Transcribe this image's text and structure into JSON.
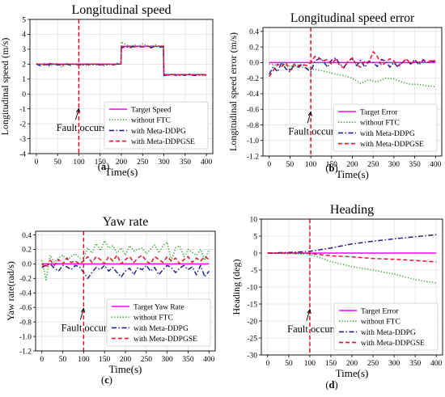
{
  "chart_data": [
    {
      "type": "line",
      "panel_label": "(a)",
      "title": "Longitudinal speed",
      "xlabel": "Time(s)",
      "ylabel": "Longitudinal speed (m/s)",
      "xlim": [
        -15,
        415
      ],
      "ylim": [
        -4,
        5
      ],
      "xticks": [
        0,
        50,
        100,
        150,
        200,
        250,
        300,
        350,
        400
      ],
      "yticks": [
        -4,
        -3,
        -2,
        -1,
        0,
        1,
        2,
        3,
        4,
        5
      ],
      "grid": true,
      "legend_position": "lower-right",
      "annotation": {
        "text": "Fault occurs",
        "time": 100
      },
      "series": [
        {
          "name": "Target Speed",
          "style": "solid",
          "color": "#ff00ff",
          "x": [
            0,
            199,
            200,
            299,
            300,
            400
          ],
          "y": [
            2.0,
            2.0,
            3.2,
            3.2,
            1.3,
            1.3
          ]
        },
        {
          "name": "without FTC",
          "style": "dotted",
          "color": "#2ca02c",
          "x": [
            0,
            10,
            20,
            30,
            40,
            50,
            60,
            70,
            80,
            90,
            100,
            110,
            120,
            130,
            140,
            150,
            160,
            170,
            180,
            190,
            199,
            200,
            210,
            220,
            230,
            240,
            250,
            260,
            270,
            280,
            290,
            299,
            300,
            310,
            320,
            330,
            340,
            350,
            360,
            370,
            380,
            390,
            400
          ],
          "y": [
            2.05,
            1.95,
            2.05,
            1.85,
            1.95,
            2.05,
            1.8,
            2.0,
            1.9,
            2.05,
            1.95,
            2.0,
            1.9,
            2.05,
            1.95,
            2.0,
            1.9,
            2.0,
            1.95,
            2.05,
            2.0,
            3.5,
            3.3,
            3.2,
            3.3,
            3.2,
            3.35,
            3.25,
            3.2,
            3.3,
            3.2,
            3.25,
            1.4,
            1.25,
            1.35,
            1.2,
            1.3,
            1.25,
            1.35,
            1.25,
            1.3,
            1.2,
            1.3
          ]
        },
        {
          "name": "with Meta-DDPG",
          "style": "dashdot",
          "color": "#1f1f8f",
          "x": [
            0,
            10,
            20,
            30,
            40,
            50,
            60,
            70,
            80,
            90,
            100,
            110,
            120,
            130,
            140,
            150,
            160,
            170,
            180,
            190,
            199,
            200,
            210,
            220,
            230,
            240,
            250,
            260,
            270,
            280,
            290,
            299,
            300,
            310,
            320,
            330,
            340,
            350,
            360,
            370,
            380,
            390,
            400
          ],
          "y": [
            2.0,
            1.9,
            2.0,
            1.95,
            2.0,
            1.95,
            1.95,
            2.0,
            1.95,
            2.0,
            1.95,
            1.95,
            2.0,
            1.95,
            2.0,
            1.95,
            1.95,
            2.0,
            1.95,
            2.0,
            2.0,
            3.1,
            3.15,
            3.1,
            3.2,
            3.15,
            3.15,
            3.2,
            3.1,
            3.2,
            3.15,
            3.15,
            1.25,
            1.25,
            1.3,
            1.25,
            1.3,
            1.25,
            1.3,
            1.25,
            1.25,
            1.3,
            1.25
          ]
        },
        {
          "name": "with Meta-DDPGSE",
          "style": "dashed",
          "color": "#e8102a",
          "x": [
            0,
            10,
            20,
            30,
            40,
            50,
            60,
            70,
            80,
            90,
            100,
            110,
            120,
            130,
            140,
            150,
            160,
            170,
            180,
            190,
            199,
            200,
            210,
            220,
            230,
            240,
            250,
            260,
            270,
            280,
            290,
            299,
            300,
            310,
            320,
            330,
            340,
            350,
            360,
            370,
            380,
            390,
            400
          ],
          "y": [
            2.0,
            2.0,
            1.95,
            2.05,
            2.0,
            2.0,
            1.95,
            2.0,
            2.0,
            2.0,
            1.95,
            2.0,
            1.95,
            2.0,
            2.0,
            1.95,
            2.0,
            2.0,
            1.95,
            2.0,
            2.0,
            3.2,
            3.15,
            3.2,
            3.15,
            3.2,
            3.15,
            3.2,
            3.15,
            3.2,
            3.2,
            3.2,
            1.3,
            1.25,
            1.3,
            1.3,
            1.25,
            1.3,
            1.3,
            1.25,
            1.3,
            1.3,
            1.25
          ]
        }
      ]
    },
    {
      "type": "line",
      "panel_label": "(b)",
      "title": "Longitudinal speed error",
      "xlabel": "Time(s)",
      "ylabel": "Longitudinal speed error (m/s)",
      "xlim": [
        -15,
        415
      ],
      "ylim": [
        -1.2,
        0.45
      ],
      "xticks": [
        0,
        50,
        100,
        150,
        200,
        250,
        300,
        350,
        400
      ],
      "yticks": [
        -1.2,
        -1.0,
        -0.8,
        -0.6,
        -0.4,
        -0.2,
        0.0,
        0.2,
        0.4
      ],
      "grid": true,
      "legend_position": "lower-right",
      "annotation": {
        "text": "Fault occurs",
        "time": 100
      },
      "series": [
        {
          "name": "Target Error",
          "style": "solid",
          "color": "#ff00ff",
          "x": [
            0,
            400
          ],
          "y": [
            0.0,
            0.0
          ]
        },
        {
          "name": "without FTC",
          "style": "dotted",
          "color": "#2ca02c",
          "x": [
            0,
            20,
            40,
            60,
            80,
            100,
            120,
            140,
            160,
            180,
            200,
            220,
            240,
            260,
            280,
            300,
            320,
            340,
            360,
            380,
            400
          ],
          "y": [
            -0.02,
            -0.03,
            -0.04,
            -0.05,
            -0.06,
            -0.08,
            -0.1,
            -0.12,
            -0.15,
            -0.17,
            -0.2,
            -0.27,
            -0.22,
            -0.25,
            -0.2,
            -0.21,
            -0.25,
            -0.28,
            -0.28,
            -0.3,
            -0.31
          ]
        },
        {
          "name": "with Meta-DDPG",
          "style": "dashdot",
          "color": "#1f1f8f",
          "x": [
            0,
            10,
            20,
            30,
            40,
            50,
            60,
            70,
            80,
            90,
            100,
            110,
            120,
            130,
            140,
            150,
            160,
            170,
            180,
            190,
            200,
            210,
            220,
            230,
            240,
            250,
            260,
            270,
            280,
            290,
            300,
            310,
            320,
            330,
            340,
            350,
            360,
            370,
            380,
            390,
            400
          ],
          "y": [
            -0.15,
            -0.05,
            -0.12,
            0.0,
            -0.08,
            -0.12,
            -0.03,
            -0.06,
            -0.02,
            -0.08,
            -0.12,
            0.02,
            0.05,
            0.02,
            -0.06,
            0.03,
            0.06,
            -0.02,
            -0.06,
            0.02,
            0.05,
            -0.04,
            0.03,
            -0.06,
            0.02,
            0.0,
            -0.05,
            0.04,
            0.02,
            -0.06,
            0.0,
            -0.06,
            0.0,
            0.04,
            -0.02,
            0.04,
            -0.03,
            0.03,
            0.0,
            0.02,
            0.01
          ]
        },
        {
          "name": "with Meta-DDPGSE",
          "style": "dashed",
          "color": "#e8102a",
          "x": [
            0,
            10,
            20,
            30,
            40,
            50,
            60,
            70,
            80,
            90,
            100,
            110,
            120,
            130,
            140,
            150,
            160,
            170,
            180,
            190,
            200,
            210,
            220,
            230,
            240,
            250,
            260,
            270,
            280,
            290,
            300,
            310,
            320,
            330,
            340,
            350,
            360,
            370,
            380,
            390,
            400
          ],
          "y": [
            -0.18,
            -0.1,
            -0.02,
            -0.05,
            0.0,
            -0.1,
            -0.02,
            -0.04,
            -0.02,
            -0.04,
            0.0,
            0.08,
            0.06,
            0.02,
            0.04,
            -0.02,
            0.04,
            -0.04,
            -0.07,
            0.02,
            0.06,
            -0.03,
            -0.06,
            0.02,
            0.0,
            0.14,
            0.08,
            -0.04,
            0.0,
            0.05,
            0.02,
            -0.04,
            0.0,
            0.05,
            -0.02,
            0.02,
            0.0,
            0.04,
            0.0,
            0.03,
            0.02
          ]
        }
      ]
    },
    {
      "type": "line",
      "panel_label": "(c)",
      "title": "Yaw rate",
      "xlabel": "Time(s)",
      "ylabel": "Yaw rate(rad/s)",
      "xlim": [
        -15,
        415
      ],
      "ylim": [
        -1.2,
        0.45
      ],
      "xticks": [
        0,
        50,
        100,
        150,
        200,
        250,
        300,
        350,
        400
      ],
      "yticks": [
        -1.2,
        -1.0,
        -0.8,
        -0.6,
        -0.4,
        -0.2,
        0.0,
        0.2,
        0.4
      ],
      "grid": true,
      "legend_position": "lower-right",
      "annotation": {
        "text": "Fault occurs",
        "time": 100
      },
      "series": [
        {
          "name": "Target Yaw Rate",
          "style": "solid",
          "color": "#ff00ff",
          "x": [
            0,
            400
          ],
          "y": [
            0.0,
            0.0
          ]
        },
        {
          "name": "without FTC",
          "style": "dotted",
          "color": "#2ca02c",
          "x": [
            0,
            10,
            20,
            30,
            40,
            50,
            60,
            70,
            80,
            90,
            100,
            110,
            120,
            130,
            140,
            150,
            160,
            170,
            180,
            190,
            200,
            210,
            220,
            230,
            240,
            250,
            260,
            270,
            280,
            290,
            300,
            310,
            320,
            330,
            340,
            350,
            360,
            370,
            380,
            390,
            400
          ],
          "y": [
            0.05,
            -0.22,
            0.12,
            0.02,
            0.08,
            0.12,
            0.05,
            0.1,
            0.14,
            0.08,
            0.08,
            0.22,
            0.15,
            0.28,
            0.18,
            0.32,
            0.22,
            0.25,
            0.15,
            0.22,
            0.12,
            0.25,
            0.18,
            0.2,
            0.22,
            0.14,
            0.2,
            0.26,
            0.15,
            0.25,
            0.3,
            0.05,
            0.22,
            0.25,
            0.1,
            0.2,
            0.16,
            0.12,
            0.2,
            0.05,
            0.2
          ]
        },
        {
          "name": "with Meta-DDPG",
          "style": "dashdot",
          "color": "#1f1f8f",
          "x": [
            0,
            10,
            20,
            30,
            40,
            50,
            60,
            70,
            80,
            90,
            100,
            110,
            120,
            130,
            140,
            150,
            160,
            170,
            180,
            190,
            200,
            210,
            220,
            230,
            240,
            250,
            260,
            270,
            280,
            290,
            300,
            310,
            320,
            330,
            340,
            350,
            360,
            370,
            380,
            390,
            400
          ],
          "y": [
            -0.05,
            -0.02,
            0.0,
            -0.06,
            -0.1,
            -0.02,
            -0.04,
            -0.08,
            -0.02,
            -0.04,
            -0.12,
            -0.2,
            -0.12,
            -0.05,
            -0.08,
            -0.02,
            -0.1,
            -0.05,
            -0.12,
            -0.18,
            -0.1,
            -0.06,
            -0.15,
            -0.05,
            -0.08,
            -0.02,
            -0.1,
            -0.05,
            -0.15,
            -0.08,
            -0.02,
            -0.05,
            -0.12,
            -0.06,
            -0.02,
            -0.08,
            -0.04,
            -0.15,
            -0.02,
            -0.18,
            -0.1
          ]
        },
        {
          "name": "with Meta-DDPGSE",
          "style": "dashed",
          "color": "#e8102a",
          "x": [
            0,
            10,
            20,
            30,
            40,
            50,
            60,
            70,
            80,
            90,
            100,
            110,
            120,
            130,
            140,
            150,
            160,
            170,
            180,
            190,
            200,
            210,
            220,
            230,
            240,
            250,
            260,
            270,
            280,
            290,
            300,
            310,
            320,
            330,
            340,
            350,
            360,
            370,
            380,
            390,
            400
          ],
          "y": [
            0.0,
            -0.05,
            0.05,
            -0.02,
            0.06,
            0.0,
            0.08,
            0.02,
            0.04,
            0.0,
            0.04,
            0.1,
            0.02,
            0.1,
            0.06,
            0.0,
            0.1,
            0.04,
            0.12,
            0.0,
            0.06,
            0.1,
            0.02,
            0.08,
            0.12,
            0.04,
            0.0,
            0.1,
            0.06,
            0.02,
            0.1,
            0.04,
            0.08,
            0.0,
            0.06,
            0.1,
            0.02,
            0.08,
            0.04,
            0.1,
            0.06
          ]
        }
      ]
    },
    {
      "type": "line",
      "panel_label": "(d)",
      "title": "Heading",
      "xlabel": "Time(s)",
      "ylabel": "Heading (deg)",
      "xlim": [
        -15,
        415
      ],
      "ylim": [
        -30,
        10
      ],
      "xticks": [
        0,
        50,
        100,
        150,
        200,
        250,
        300,
        350,
        400
      ],
      "yticks": [
        -30,
        -25,
        -20,
        -15,
        -10,
        -5,
        0,
        5,
        10
      ],
      "grid": true,
      "legend_position": "lower-right",
      "annotation": {
        "text": "Fault occurs",
        "time": 100
      },
      "series": [
        {
          "name": "Target Error",
          "style": "solid",
          "color": "#ff00ff",
          "x": [
            0,
            400
          ],
          "y": [
            0.0,
            0.0
          ]
        },
        {
          "name": "without FTC",
          "style": "dotted",
          "color": "#2ca02c",
          "x": [
            0,
            50,
            100,
            150,
            200,
            250,
            300,
            350,
            400
          ],
          "y": [
            0.0,
            -0.2,
            -0.3,
            -2.5,
            -4.0,
            -5.0,
            -6.2,
            -7.8,
            -8.8
          ]
        },
        {
          "name": "with Meta-DDPG",
          "style": "dashdot",
          "color": "#1f1f8f",
          "x": [
            0,
            50,
            100,
            150,
            200,
            250,
            300,
            350,
            400
          ],
          "y": [
            0.0,
            0.2,
            0.5,
            1.5,
            2.7,
            3.5,
            4.2,
            4.8,
            5.4
          ]
        },
        {
          "name": "with Meta-DDPGSE",
          "style": "dashed",
          "color": "#e8102a",
          "x": [
            0,
            50,
            100,
            150,
            200,
            250,
            300,
            350,
            400
          ],
          "y": [
            0.0,
            0.0,
            -0.1,
            -0.8,
            -1.1,
            -1.6,
            -1.8,
            -2.2,
            -2.6
          ]
        }
      ]
    }
  ]
}
